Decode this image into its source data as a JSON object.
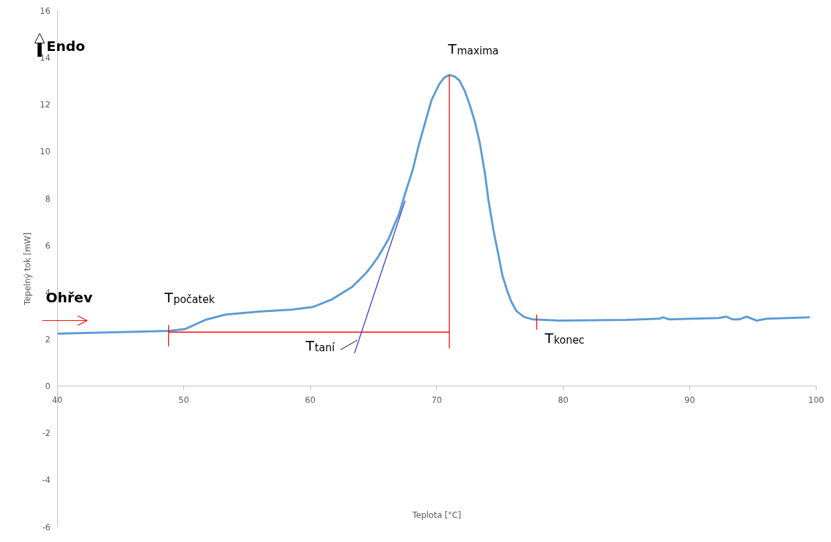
{
  "chart_data": {
    "type": "line",
    "xlabel": "Teplota [°C]",
    "ylabel": "Tepelný tok [mW]",
    "xlim": [
      40,
      100
    ],
    "ylim": [
      -6,
      16
    ],
    "xticks": [
      40,
      50,
      60,
      70,
      80,
      90,
      100
    ],
    "yticks": [
      -6,
      -4,
      -2,
      0,
      2,
      4,
      6,
      8,
      10,
      12,
      14,
      16
    ],
    "grid": false,
    "marker": "none",
    "line_style": "solid",
    "series": [
      {
        "color": "#5b9bd5",
        "x": [
          40,
          48.8,
          50.1,
          51.7,
          53.3,
          55.9,
          58.6,
          60.2,
          61.7,
          63.3,
          64.4,
          64.9,
          65.4,
          65.8,
          66.2,
          66.6,
          67.0,
          67.5,
          68.1,
          68.6,
          69.1,
          69.6,
          70.2,
          70.6,
          71.0,
          71.4,
          71.8,
          72.2,
          72.6,
          73.0,
          73.4,
          73.8,
          74.1,
          74.5,
          74.9,
          75.2,
          75.6,
          75.9,
          76.3,
          76.9,
          77.6,
          79.7,
          85.0,
          87.6,
          87.9,
          88.4,
          90.2,
          92.3,
          92.9,
          93.4,
          93.9,
          94.5,
          95.3,
          96.1,
          99.5
        ],
        "values": [
          2.23,
          2.35,
          2.43,
          2.82,
          3.05,
          3.17,
          3.26,
          3.37,
          3.69,
          4.22,
          4.81,
          5.15,
          5.54,
          5.9,
          6.28,
          6.8,
          7.3,
          8.2,
          9.21,
          10.3,
          11.26,
          12.2,
          12.87,
          13.15,
          13.26,
          13.2,
          13.02,
          12.6,
          12.0,
          11.3,
          10.38,
          9.1,
          7.89,
          6.6,
          5.54,
          4.7,
          4.02,
          3.6,
          3.2,
          2.95,
          2.84,
          2.79,
          2.82,
          2.87,
          2.93,
          2.84,
          2.87,
          2.9,
          2.96,
          2.84,
          2.84,
          2.96,
          2.79,
          2.87,
          2.93
        ]
      },
      {
        "color": "#ff0000",
        "x": [
          48.8,
          71.0
        ],
        "values": [
          2.3,
          2.3
        ]
      },
      {
        "color": "#ff0000",
        "x": [
          71.0,
          71.0
        ],
        "values": [
          1.6,
          13.26
        ]
      },
      {
        "color": "#ff0000",
        "x": [
          48.8,
          48.8
        ],
        "values": [
          1.7,
          2.6
        ]
      },
      {
        "color": "#ff0000",
        "x": [
          77.9,
          77.9
        ],
        "values": [
          2.4,
          3.05
        ]
      },
      {
        "color": "#3333cc",
        "x": [
          63.5,
          67.5
        ],
        "values": [
          1.4,
          7.9
        ]
      }
    ],
    "annotations": [
      "Endo",
      "Ohřev",
      {
        "text": "T$_{počatek}$",
        "x": 48.8,
        "y": 2.6
      },
      {
        "text": "T$_{taní}$",
        "x": 63.9,
        "y": 2.3
      },
      {
        "text": "T$_{maxima}$",
        "x": 71.0,
        "y": 13.26
      },
      {
        "text": "T$_{konec}$",
        "x": 77.9,
        "y": 2.4
      }
    ]
  }
}
